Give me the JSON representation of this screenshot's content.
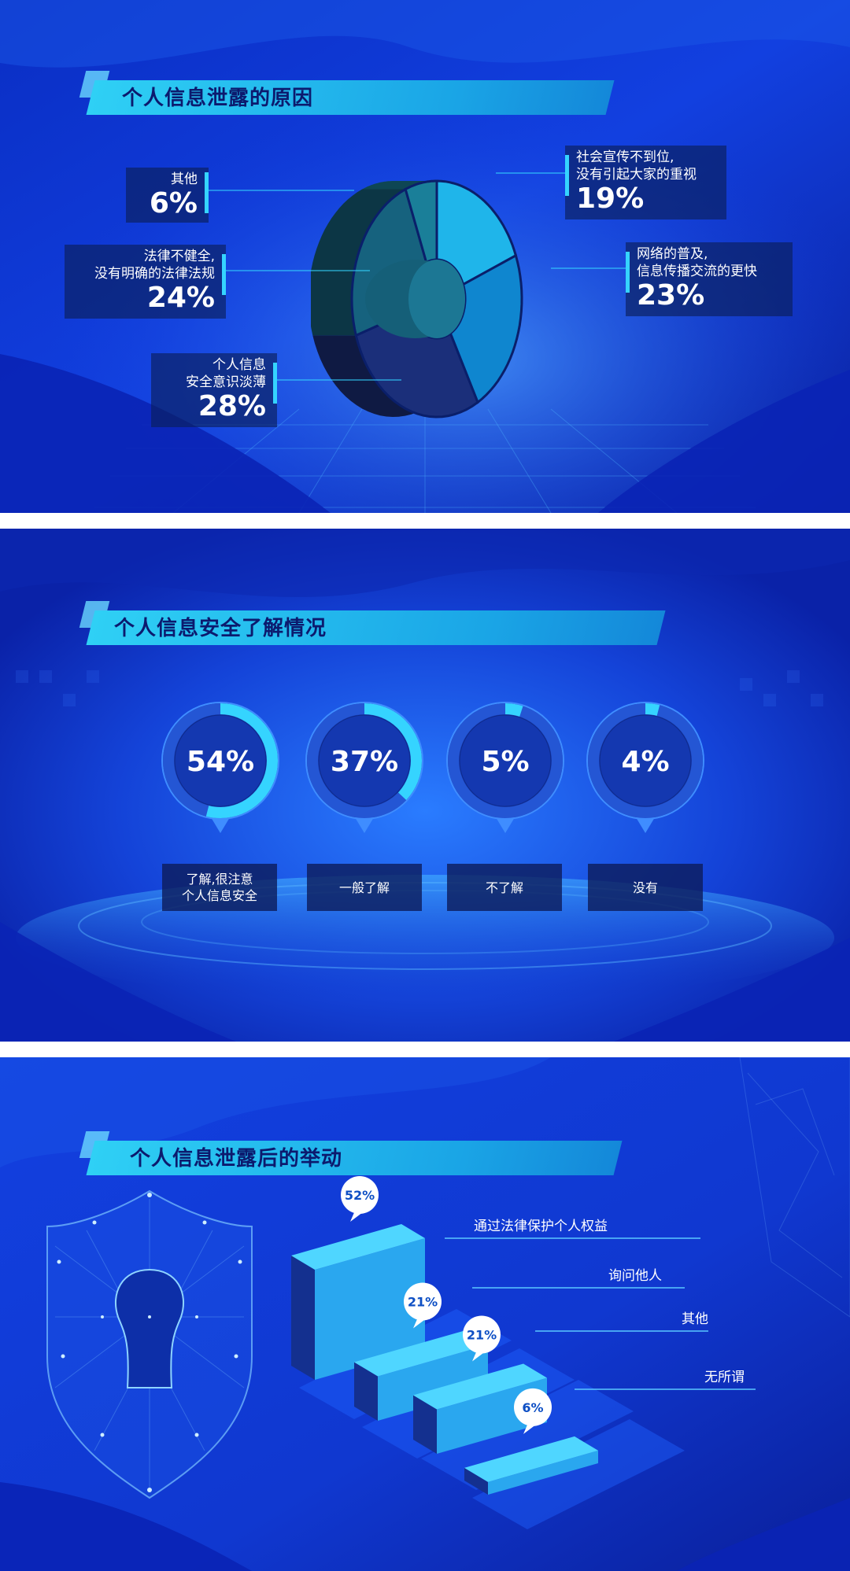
{
  "panels": [
    {
      "title": "个人信息泄露的原因"
    },
    {
      "title": "个人信息安全了解情况"
    },
    {
      "title": "个人信息泄露后的举动"
    }
  ],
  "colors": {
    "bg_dark": "#0a1f9a",
    "bg_mid": "#1237d6",
    "accent": "#35d4ff",
    "banner": "#2fd0f5",
    "title_text": "#0c1a6e"
  },
  "chart_data": [
    {
      "type": "pie",
      "title": "个人信息泄露的原因",
      "slices": [
        {
          "label": "社会宣传不到位,\n没有引起大家的重视",
          "value": 19,
          "display": "19%",
          "color": "#1fb5ea"
        },
        {
          "label": "网络的普及,\n信息传播交流的更快",
          "value": 23,
          "display": "23%",
          "color": "#0f86cf"
        },
        {
          "label": "个人信息\n安全意识淡薄",
          "value": 28,
          "display": "28%",
          "color": "#1b2f7a"
        },
        {
          "label": "法律不健全,\n没有明确的法律法规",
          "value": 24,
          "display": "24%",
          "color": "#16627e"
        },
        {
          "label": "其他",
          "value": 6,
          "display": "6%",
          "color": "#1a7f99"
        }
      ]
    },
    {
      "type": "pie",
      "title": "个人信息安全了解情况",
      "items": [
        {
          "label": "了解,很注意\n个人信息安全",
          "value": 54,
          "display": "54%"
        },
        {
          "label": "一般了解",
          "value": 37,
          "display": "37%"
        },
        {
          "label": "不了解",
          "value": 5,
          "display": "5%"
        },
        {
          "label": "没有",
          "value": 4,
          "display": "4%"
        }
      ]
    },
    {
      "type": "bar",
      "title": "个人信息泄露后的举动",
      "categories": [
        "通过法律保护个人权益",
        "询问他人",
        "其他",
        "无所谓"
      ],
      "values": [
        52,
        21,
        21,
        6
      ],
      "display": [
        "52%",
        "21%",
        "21%",
        "6%"
      ]
    }
  ]
}
